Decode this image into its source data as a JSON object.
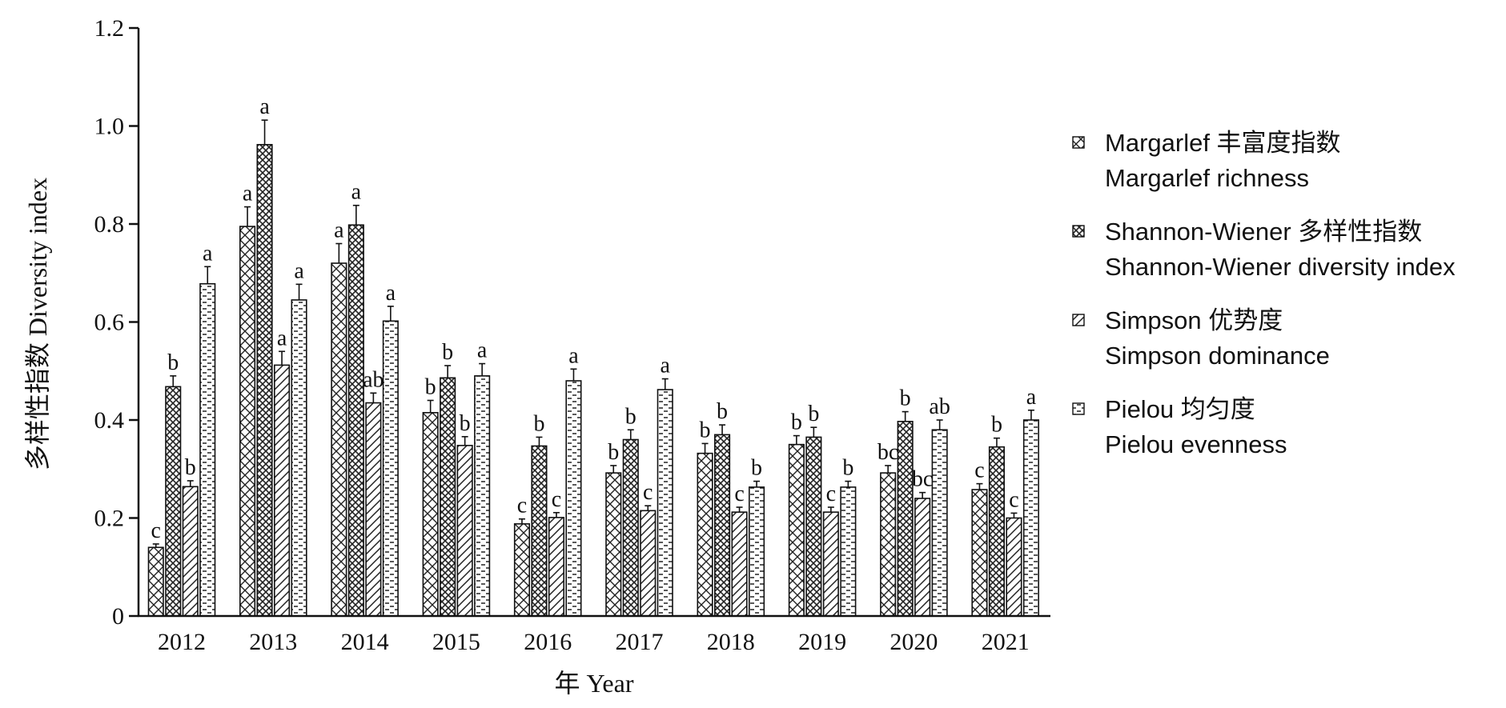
{
  "chart_data": {
    "type": "bar",
    "title": "",
    "xlabel": "年 Year",
    "ylabel": "多样性指数 Diversity index",
    "ylim": [
      0,
      1.2
    ],
    "yticks": [
      "0",
      "0.2",
      "0.4",
      "0.6",
      "0.8",
      "1.0",
      "1.2"
    ],
    "ytick_values": [
      0,
      0.2,
      0.4,
      0.6,
      0.8,
      1.0,
      1.2
    ],
    "categories": [
      "2012",
      "2013",
      "2014",
      "2015",
      "2016",
      "2017",
      "2018",
      "2019",
      "2020",
      "2021"
    ],
    "grid": false,
    "legend_position": "right",
    "series": [
      {
        "name": "Margarlef 丰富度指数",
        "name_en": "Margarlef richness",
        "pattern": "crosshatch",
        "values": [
          0.14,
          0.795,
          0.72,
          0.415,
          0.188,
          0.292,
          0.332,
          0.35,
          0.292,
          0.258
        ],
        "errors": [
          0.007,
          0.04,
          0.04,
          0.025,
          0.01,
          0.015,
          0.02,
          0.018,
          0.015,
          0.012
        ],
        "labels": [
          "c",
          "a",
          "a",
          "b",
          "c",
          "b",
          "b",
          "b",
          "bc",
          "c"
        ]
      },
      {
        "name": "Shannon-Wiener 多样性指数",
        "name_en": "Shannon-Wiener diversity index",
        "pattern": "dense-crosshatch",
        "values": [
          0.468,
          0.962,
          0.798,
          0.486,
          0.347,
          0.36,
          0.37,
          0.365,
          0.397,
          0.345
        ],
        "errors": [
          0.022,
          0.05,
          0.04,
          0.025,
          0.018,
          0.02,
          0.02,
          0.02,
          0.02,
          0.018
        ],
        "labels": [
          "b",
          "a",
          "a",
          "b",
          "b",
          "b",
          "b",
          "b",
          "b",
          "b"
        ]
      },
      {
        "name": "Simpson 优势度",
        "name_en": "Simpson dominance",
        "pattern": "diagonal",
        "values": [
          0.264,
          0.512,
          0.435,
          0.348,
          0.201,
          0.215,
          0.212,
          0.212,
          0.24,
          0.2
        ],
        "errors": [
          0.012,
          0.028,
          0.02,
          0.018,
          0.01,
          0.01,
          0.01,
          0.01,
          0.012,
          0.01
        ],
        "labels": [
          "b",
          "a",
          "ab",
          "b",
          "c",
          "c",
          "c",
          "c",
          "bc",
          "c"
        ]
      },
      {
        "name": "Pielou 均匀度",
        "name_en": "Pielou evenness",
        "pattern": "dashes",
        "values": [
          0.678,
          0.645,
          0.602,
          0.49,
          0.48,
          0.462,
          0.263,
          0.263,
          0.38,
          0.4
        ],
        "errors": [
          0.035,
          0.032,
          0.03,
          0.025,
          0.024,
          0.022,
          0.012,
          0.012,
          0.02,
          0.02
        ],
        "labels": [
          "a",
          "a",
          "a",
          "a",
          "a",
          "a",
          "b",
          "b",
          "ab",
          "a"
        ]
      }
    ]
  }
}
